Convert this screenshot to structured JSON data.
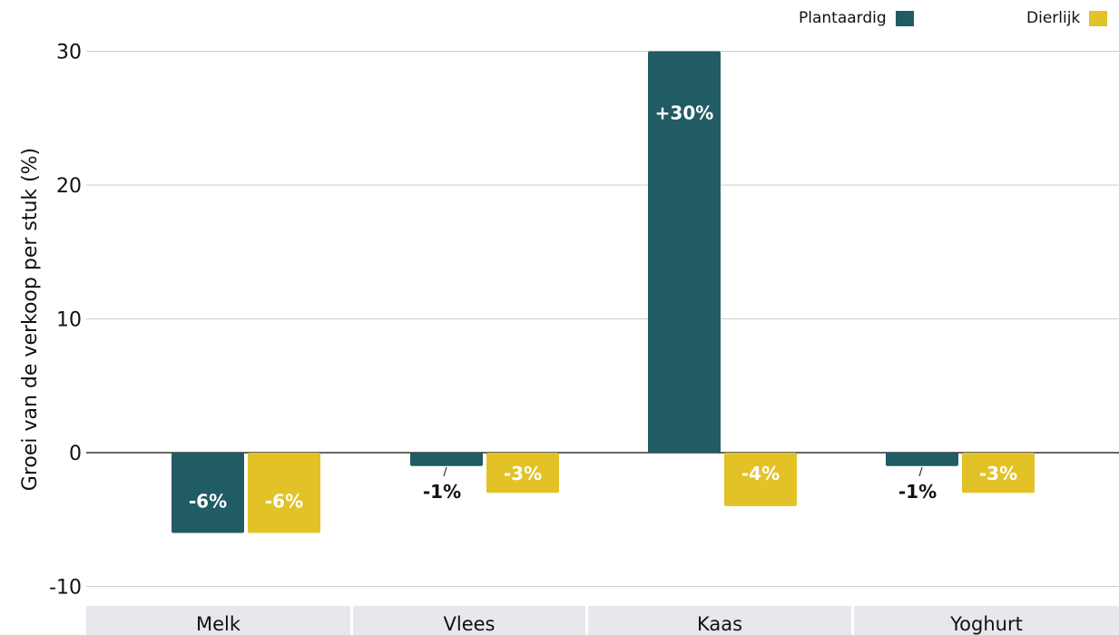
{
  "chart_data": {
    "type": "bar",
    "categories": [
      "Melk",
      "Vlees",
      "Kaas",
      "Yoghurt"
    ],
    "series": [
      {
        "name": "Plantaardig",
        "color": "#215b64",
        "values": [
          -6,
          -1,
          30,
          -1
        ],
        "labels": [
          "-6%",
          "-1%",
          "+30%",
          "-1%"
        ]
      },
      {
        "name": "Dierlijk",
        "color": "#e2c227",
        "values": [
          -6,
          -3,
          -4,
          -3
        ],
        "labels": [
          "-6%",
          "-3%",
          "-4%",
          "-3%"
        ]
      }
    ],
    "ylabel": "Groei van de verkoop per stuk (%)",
    "xlabel": "",
    "ylim": [
      -10,
      30
    ],
    "yticks": [
      -10,
      0,
      10,
      20,
      30
    ],
    "grid": true,
    "legend_position": "top-right"
  }
}
